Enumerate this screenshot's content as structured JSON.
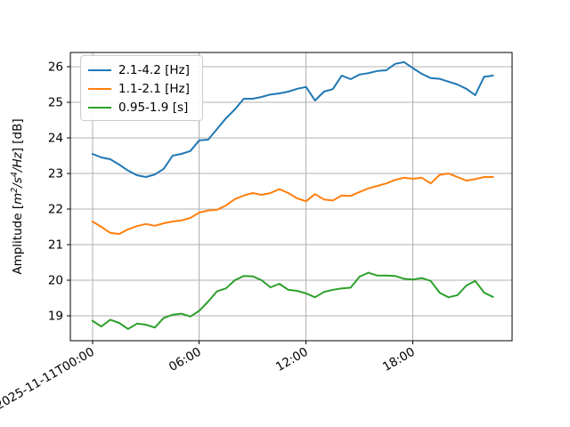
{
  "figure": {
    "background": "#ffffff"
  },
  "colors": {
    "grid": "#b0b0b0",
    "spine": "#000000",
    "tick_text": "#000000"
  },
  "chart_data": {
    "type": "line",
    "title": "",
    "xlabel": "",
    "ylabel": "Amplitude [m²/s⁴/Hz] [dB]",
    "ylabel_parts": [
      {
        "text": "Amplitude [",
        "italic": false,
        "sup": false
      },
      {
        "text": "m",
        "italic": true,
        "sup": false
      },
      {
        "text": "2",
        "italic": true,
        "sup": true
      },
      {
        "text": "/s",
        "italic": true,
        "sup": false
      },
      {
        "text": "4",
        "italic": true,
        "sup": true
      },
      {
        "text": "/Hz",
        "italic": true,
        "sup": false
      },
      {
        "text": "] [dB]",
        "italic": false,
        "sup": false
      }
    ],
    "grid": true,
    "legend": {
      "position": "upper-left"
    },
    "x_axis": {
      "unit": "hours since 2025-11-11T00:00",
      "start": 0,
      "step": 0.5,
      "lim": [
        -1.24,
        23.57
      ],
      "ticks": [
        {
          "value": 0,
          "label": "2025-11-11T00:00"
        },
        {
          "value": 6,
          "label": "06:00"
        },
        {
          "value": 12,
          "label": "12:00"
        },
        {
          "value": 18,
          "label": "18:00"
        }
      ]
    },
    "y_axis": {
      "lim": [
        18.3,
        26.4
      ],
      "ticks": [
        19,
        20,
        21,
        22,
        23,
        24,
        25,
        26
      ]
    },
    "series": [
      {
        "name": "2.1-4.2 [Hz]",
        "color": "#1f77b4",
        "values": [
          23.55,
          23.45,
          23.4,
          23.25,
          23.08,
          22.95,
          22.9,
          22.97,
          23.13,
          23.5,
          23.55,
          23.63,
          23.93,
          23.95,
          24.25,
          24.55,
          24.8,
          25.1,
          25.1,
          25.15,
          25.22,
          25.25,
          25.3,
          25.38,
          25.43,
          25.05,
          25.3,
          25.37,
          25.75,
          25.65,
          25.78,
          25.82,
          25.88,
          25.9,
          26.08,
          26.13,
          25.96,
          25.8,
          25.68,
          25.66,
          25.58,
          25.5,
          25.38,
          25.2,
          25.72,
          25.75
        ]
      },
      {
        "name": "1.1-2.1 [Hz]",
        "color": "#ff7f0e",
        "values": [
          21.65,
          21.5,
          21.33,
          21.3,
          21.43,
          21.52,
          21.58,
          21.53,
          21.6,
          21.65,
          21.68,
          21.75,
          21.9,
          21.96,
          21.98,
          22.1,
          22.28,
          22.38,
          22.45,
          22.4,
          22.45,
          22.56,
          22.45,
          22.3,
          22.22,
          22.42,
          22.27,
          22.24,
          22.38,
          22.37,
          22.48,
          22.58,
          22.65,
          22.72,
          22.82,
          22.88,
          22.85,
          22.88,
          22.72,
          22.96,
          23.0,
          22.9,
          22.8,
          22.84,
          22.9,
          22.9
        ]
      },
      {
        "name": "0.95-1.9 [s]",
        "color": "#2ca02c",
        "values": [
          18.86,
          18.7,
          18.89,
          18.8,
          18.63,
          18.78,
          18.75,
          18.67,
          18.94,
          19.03,
          19.06,
          18.98,
          19.14,
          19.4,
          19.69,
          19.77,
          20.0,
          20.12,
          20.11,
          20.0,
          19.8,
          19.9,
          19.73,
          19.7,
          19.63,
          19.52,
          19.67,
          19.73,
          19.77,
          19.79,
          20.1,
          20.21,
          20.13,
          20.13,
          20.12,
          20.04,
          20.02,
          20.06,
          19.98,
          19.65,
          19.52,
          19.58,
          19.85,
          19.98,
          19.65,
          19.53
        ]
      }
    ]
  }
}
